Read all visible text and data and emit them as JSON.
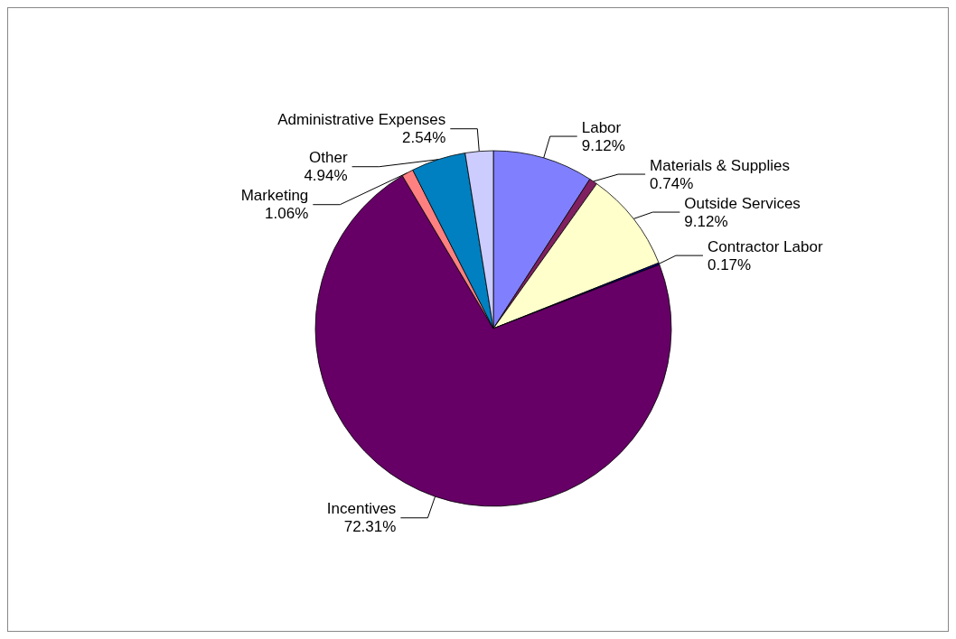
{
  "chart_data": {
    "type": "pie",
    "categories": [
      "Labor",
      "Materials & Supplies",
      "Outside Services",
      "Contractor Labor",
      "Incentives",
      "Marketing",
      "Other",
      "Administrative Expenses"
    ],
    "values": [
      9.12,
      0.74,
      9.12,
      0.17,
      72.31,
      1.06,
      4.94,
      2.54
    ],
    "colors": [
      "#8080ff",
      "#802060",
      "#ffffcc",
      "#000080",
      "#660066",
      "#ff8080",
      "#0080c0",
      "#ccccff"
    ],
    "value_labels": [
      "9.12%",
      "0.74%",
      "9.12%",
      "0.17%",
      "72.31%",
      "1.06%",
      "4.94%",
      "2.54%"
    ]
  }
}
